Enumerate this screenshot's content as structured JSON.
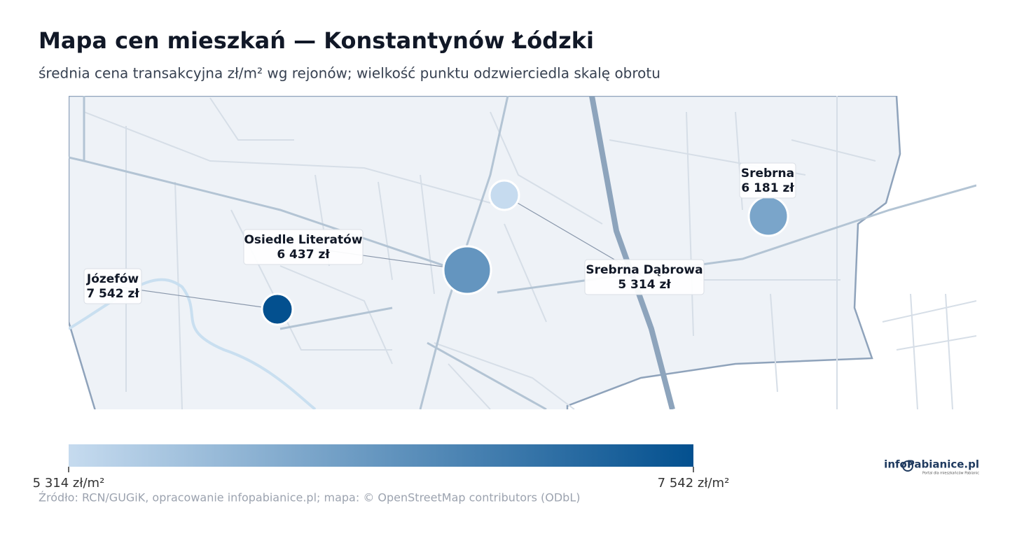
{
  "title": "Mapa cen mieszkań — Konstantynów Łódzki",
  "subtitle": "średnia cena transakcyjna zł/m² wg rejonów; wielkość punktu odzwierciedla skalę obrotu",
  "points": [
    {
      "name": "Józefów",
      "value": 7542,
      "value_label": "7 542 zł"
    },
    {
      "name": "Osiedle Literatów",
      "value": 6437,
      "value_label": "6 437 zł"
    },
    {
      "name": "Srebrna Dąbrowa",
      "value": 5314,
      "value_label": "5 314 zł"
    },
    {
      "name": "Srebrna",
      "value": 6181,
      "value_label": "6 181 zł"
    }
  ],
  "colorbar": {
    "colors": [
      "#c6dbef",
      "#03508f"
    ],
    "range": [
      5314,
      7542
    ],
    "ticks": [
      {
        "value": 5314,
        "label": "5 314 zł/m²"
      },
      {
        "value": 7542,
        "label": "7 542 zł/m²"
      }
    ]
  },
  "source": "Źródło: RCN/GUGiK, opracowanie infopabianice.pl; mapa: © OpenStreetMap contributors (ODbL)",
  "logo": {
    "name": "infoPabianice.pl",
    "tagline": "Portal dla mieszkańców Pabianic"
  }
}
